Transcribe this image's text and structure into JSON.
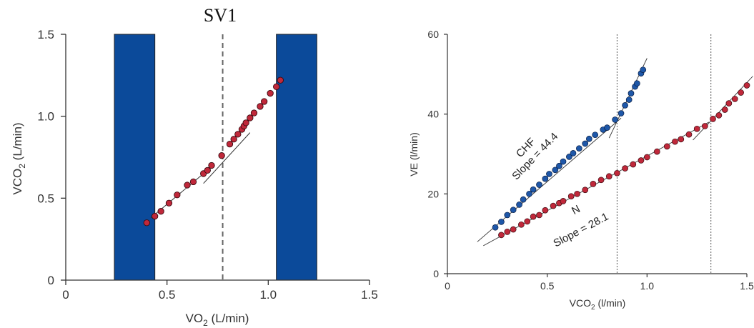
{
  "colors": {
    "bar": "#0b4a9a",
    "red_point": "#c0283a",
    "blue_point": "#1e57a8",
    "axis": "#333333"
  },
  "chart_data": [
    {
      "type": "scatter",
      "title": "SV1",
      "xlabel": "VO",
      "xlabel_sub": "2",
      "xlabel_unit": " (L/min)",
      "ylabel": "VCO",
      "ylabel_sub": "2",
      "ylabel_unit": " (L/min)",
      "xlim": [
        0,
        1.5
      ],
      "ylim": [
        0,
        1.5
      ],
      "xticks": [
        "0",
        "0.5",
        "1.0",
        "1.5"
      ],
      "yticks": [
        "0",
        "0.5",
        "1.0",
        "1.5"
      ],
      "bars": [
        {
          "x_start": 0.24,
          "x_end": 0.44,
          "height": 1.5
        },
        {
          "x_start": 1.04,
          "x_end": 1.24,
          "height": 1.5
        }
      ],
      "threshold_x": 0.775,
      "fit_lines": [
        {
          "x": [
            0.42,
            0.69
          ],
          "y": [
            0.38,
            0.66
          ]
        },
        {
          "x": [
            0.68,
            0.91
          ],
          "y": [
            0.59,
            0.9
          ]
        }
      ],
      "points": [
        {
          "x": 0.4,
          "y": 0.35
        },
        {
          "x": 0.44,
          "y": 0.39
        },
        {
          "x": 0.47,
          "y": 0.42
        },
        {
          "x": 0.51,
          "y": 0.47
        },
        {
          "x": 0.55,
          "y": 0.52
        },
        {
          "x": 0.6,
          "y": 0.58
        },
        {
          "x": 0.63,
          "y": 0.6
        },
        {
          "x": 0.68,
          "y": 0.65
        },
        {
          "x": 0.7,
          "y": 0.67
        },
        {
          "x": 0.72,
          "y": 0.7
        },
        {
          "x": 0.77,
          "y": 0.76
        },
        {
          "x": 0.81,
          "y": 0.83
        },
        {
          "x": 0.83,
          "y": 0.86
        },
        {
          "x": 0.85,
          "y": 0.89
        },
        {
          "x": 0.87,
          "y": 0.92
        },
        {
          "x": 0.88,
          "y": 0.94
        },
        {
          "x": 0.89,
          "y": 0.96
        },
        {
          "x": 0.91,
          "y": 0.99
        },
        {
          "x": 0.93,
          "y": 1.02
        },
        {
          "x": 0.96,
          "y": 1.06
        },
        {
          "x": 0.98,
          "y": 1.09
        },
        {
          "x": 1.01,
          "y": 1.14
        },
        {
          "x": 1.04,
          "y": 1.18
        },
        {
          "x": 1.06,
          "y": 1.22
        }
      ]
    },
    {
      "type": "scatter",
      "xlabel": "VCO",
      "xlabel_sub": "2",
      "xlabel_unit": " (l/min)",
      "ylabel": "VE (l/min)",
      "xlim": [
        0,
        1.5
      ],
      "ylim": [
        0,
        60
      ],
      "xticks": [
        "0",
        "0.5",
        "1.0",
        "1.5"
      ],
      "yticks": [
        "0",
        "20",
        "40",
        "60"
      ],
      "thresholds_x": [
        0.85,
        1.32
      ],
      "series": [
        {
          "name": "CHF",
          "annotation": "Slope = 44.4",
          "points": [
            {
              "x": 0.24,
              "y": 11.6
            },
            {
              "x": 0.27,
              "y": 13.0
            },
            {
              "x": 0.3,
              "y": 14.7
            },
            {
              "x": 0.33,
              "y": 16.0
            },
            {
              "x": 0.36,
              "y": 17.3
            },
            {
              "x": 0.38,
              "y": 18.6
            },
            {
              "x": 0.41,
              "y": 20.0
            },
            {
              "x": 0.43,
              "y": 21.1
            },
            {
              "x": 0.46,
              "y": 22.3
            },
            {
              "x": 0.49,
              "y": 23.8
            },
            {
              "x": 0.51,
              "y": 25.0
            },
            {
              "x": 0.54,
              "y": 26.0
            },
            {
              "x": 0.56,
              "y": 27.0
            },
            {
              "x": 0.58,
              "y": 28.1
            },
            {
              "x": 0.61,
              "y": 29.3
            },
            {
              "x": 0.63,
              "y": 30.2
            },
            {
              "x": 0.66,
              "y": 31.4
            },
            {
              "x": 0.69,
              "y": 32.6
            },
            {
              "x": 0.71,
              "y": 33.8
            },
            {
              "x": 0.74,
              "y": 34.8
            },
            {
              "x": 0.78,
              "y": 36.1
            },
            {
              "x": 0.8,
              "y": 36.6
            },
            {
              "x": 0.84,
              "y": 38.6
            },
            {
              "x": 0.87,
              "y": 40.2
            },
            {
              "x": 0.89,
              "y": 42.2
            },
            {
              "x": 0.91,
              "y": 43.6
            },
            {
              "x": 0.92,
              "y": 45.2
            },
            {
              "x": 0.94,
              "y": 46.9
            },
            {
              "x": 0.95,
              "y": 47.7
            },
            {
              "x": 0.97,
              "y": 50.2
            },
            {
              "x": 0.98,
              "y": 51.1
            }
          ]
        },
        {
          "name": "N",
          "annotation": "Slope = 28.1",
          "points": [
            {
              "x": 0.27,
              "y": 9.7
            },
            {
              "x": 0.3,
              "y": 10.5
            },
            {
              "x": 0.33,
              "y": 11.1
            },
            {
              "x": 0.37,
              "y": 12.3
            },
            {
              "x": 0.4,
              "y": 13.1
            },
            {
              "x": 0.43,
              "y": 14.3
            },
            {
              "x": 0.46,
              "y": 14.7
            },
            {
              "x": 0.49,
              "y": 15.9
            },
            {
              "x": 0.53,
              "y": 17.0
            },
            {
              "x": 0.56,
              "y": 17.7
            },
            {
              "x": 0.58,
              "y": 18.2
            },
            {
              "x": 0.62,
              "y": 19.4
            },
            {
              "x": 0.65,
              "y": 20.0
            },
            {
              "x": 0.69,
              "y": 21.0
            },
            {
              "x": 0.73,
              "y": 22.5
            },
            {
              "x": 0.77,
              "y": 23.5
            },
            {
              "x": 0.81,
              "y": 24.4
            },
            {
              "x": 0.85,
              "y": 25.2
            },
            {
              "x": 0.89,
              "y": 26.4
            },
            {
              "x": 0.93,
              "y": 27.4
            },
            {
              "x": 0.97,
              "y": 28.4
            },
            {
              "x": 1.0,
              "y": 29.2
            },
            {
              "x": 1.05,
              "y": 30.6
            },
            {
              "x": 1.1,
              "y": 31.9
            },
            {
              "x": 1.14,
              "y": 33.1
            },
            {
              "x": 1.17,
              "y": 33.7
            },
            {
              "x": 1.21,
              "y": 34.9
            },
            {
              "x": 1.25,
              "y": 36.3
            },
            {
              "x": 1.29,
              "y": 37.0
            },
            {
              "x": 1.33,
              "y": 38.8
            },
            {
              "x": 1.36,
              "y": 39.7
            },
            {
              "x": 1.39,
              "y": 41.1
            },
            {
              "x": 1.41,
              "y": 42.7
            },
            {
              "x": 1.44,
              "y": 43.8
            },
            {
              "x": 1.47,
              "y": 45.4
            },
            {
              "x": 1.5,
              "y": 47.2
            }
          ]
        }
      ],
      "fit_lines": [
        {
          "x": [
            0.15,
            0.87
          ],
          "y": [
            8.0,
            39.0
          ]
        },
        {
          "x": [
            0.81,
            1.0
          ],
          "y": [
            34.0,
            54.0
          ]
        },
        {
          "x": [
            0.18,
            1.31
          ],
          "y": [
            7.0,
            38.0
          ]
        },
        {
          "x": [
            1.23,
            1.53
          ],
          "y": [
            33.5,
            49.5
          ]
        }
      ]
    }
  ]
}
